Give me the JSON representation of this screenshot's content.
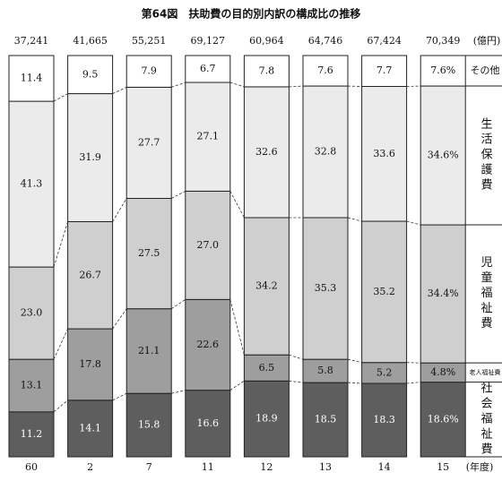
{
  "chart_data": {
    "type": "stacked-bar-100",
    "title": "第64図　扶助費の目的別内訳の構成比の推移",
    "categories": [
      "60",
      "2",
      "7",
      "11",
      "12",
      "13",
      "14",
      "15"
    ],
    "x_unit": "(年度)",
    "totals": {
      "unit": "(億円)",
      "values": [
        37241,
        41665,
        55251,
        69127,
        60964,
        64746,
        67424,
        70349
      ],
      "value_labels": [
        "37,241",
        "41,665",
        "55,251",
        "69,127",
        "60,964",
        "64,746",
        "67,424",
        "70,349"
      ]
    },
    "series": [
      {
        "name": "社会福祉費",
        "color": "#5e5e5e",
        "text_color": "#ffffff",
        "values": [
          11.2,
          14.1,
          15.8,
          16.6,
          18.9,
          18.5,
          18.3,
          18.6
        ],
        "value_labels": [
          "11.2",
          "14.1",
          "15.8",
          "16.6",
          "18.9",
          "18.5",
          "18.3",
          "18.6%"
        ]
      },
      {
        "name": "老人福祉費",
        "color": "#9e9e9e",
        "text_color": "#111111",
        "values": [
          13.1,
          17.8,
          21.1,
          22.6,
          6.5,
          5.8,
          5.2,
          4.8
        ],
        "value_labels": [
          "13.1",
          "17.8",
          "21.1",
          "22.6",
          "6.5",
          "5.8",
          "5.2",
          "4.8%"
        ]
      },
      {
        "name": "児童福祉費",
        "color": "#cfcfcf",
        "text_color": "#111111",
        "values": [
          23.0,
          26.7,
          27.5,
          27.0,
          34.2,
          35.3,
          35.2,
          34.4
        ],
        "value_labels": [
          "23.0",
          "26.7",
          "27.5",
          "27.0",
          "34.2",
          "35.3",
          "35.2",
          "34.4%"
        ]
      },
      {
        "name": "生活保護費",
        "color": "#ebebeb",
        "text_color": "#111111",
        "values": [
          41.3,
          31.9,
          27.7,
          27.1,
          32.6,
          32.8,
          33.6,
          34.6
        ],
        "value_labels": [
          "41.3",
          "31.9",
          "27.7",
          "27.1",
          "32.6",
          "32.8",
          "33.6",
          "34.6%"
        ]
      },
      {
        "name": "その他",
        "color": "#ffffff",
        "text_color": "#111111",
        "values": [
          11.4,
          9.5,
          7.9,
          6.7,
          7.8,
          7.6,
          7.7,
          7.6
        ],
        "value_labels": [
          "11.4",
          "9.5",
          "7.9",
          "6.7",
          "7.8",
          "7.6",
          "7.7",
          "7.6%"
        ]
      }
    ]
  }
}
